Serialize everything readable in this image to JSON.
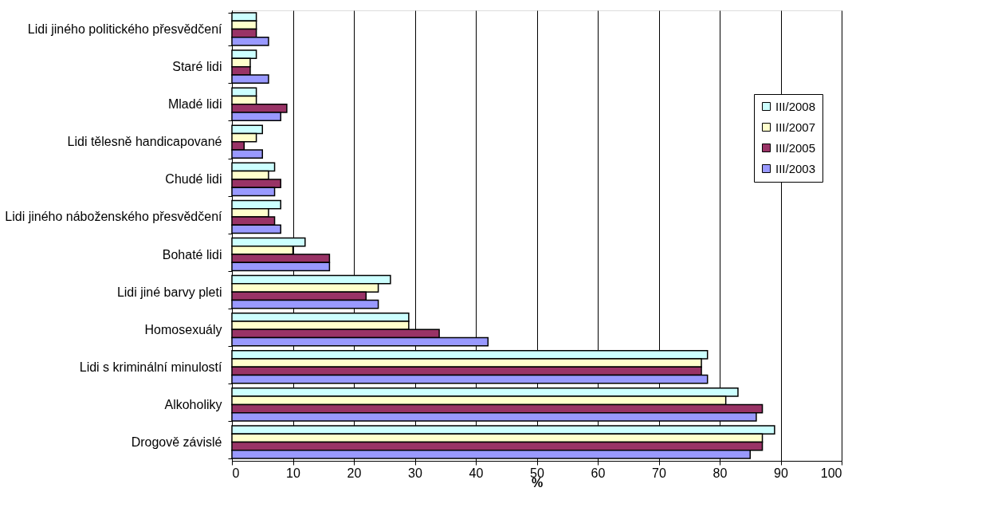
{
  "chart_data": {
    "type": "bar",
    "orientation": "horizontal",
    "xlabel": "%",
    "categories": [
      "Lidi jiného politického přesvědčení",
      "Staré lidi",
      "Mladé lidi",
      "Lidi tělesně handicapované",
      "Chudé lidi",
      "Lidi jiného náboženského přesvědčení",
      "Bohaté lidi",
      "Lidi jiné barvy pleti",
      "Homosexuály",
      "Lidi s kriminální minulostí",
      "Alkoholiky",
      "Drogově závislé"
    ],
    "series": [
      {
        "name": "III/2008",
        "color": "#ccffff",
        "values": [
          4,
          4,
          4,
          5,
          7,
          8,
          12,
          26,
          29,
          78,
          83,
          89
        ]
      },
      {
        "name": "III/2007",
        "color": "#ffffcc",
        "values": [
          4,
          3,
          4,
          4,
          6,
          6,
          10,
          24,
          29,
          77,
          81,
          87
        ]
      },
      {
        "name": "III/2005",
        "color": "#993366",
        "values": [
          4,
          3,
          9,
          2,
          8,
          7,
          16,
          22,
          34,
          77,
          87,
          87
        ]
      },
      {
        "name": "III/2003",
        "color": "#9999ff",
        "values": [
          6,
          6,
          8,
          5,
          7,
          8,
          16,
          24,
          42,
          78,
          86,
          85
        ]
      }
    ],
    "xlim": [
      0,
      100
    ],
    "xticks": [
      0,
      10,
      20,
      30,
      40,
      50,
      60,
      70,
      80,
      90,
      100
    ],
    "grid": "x",
    "legend": "top right"
  }
}
